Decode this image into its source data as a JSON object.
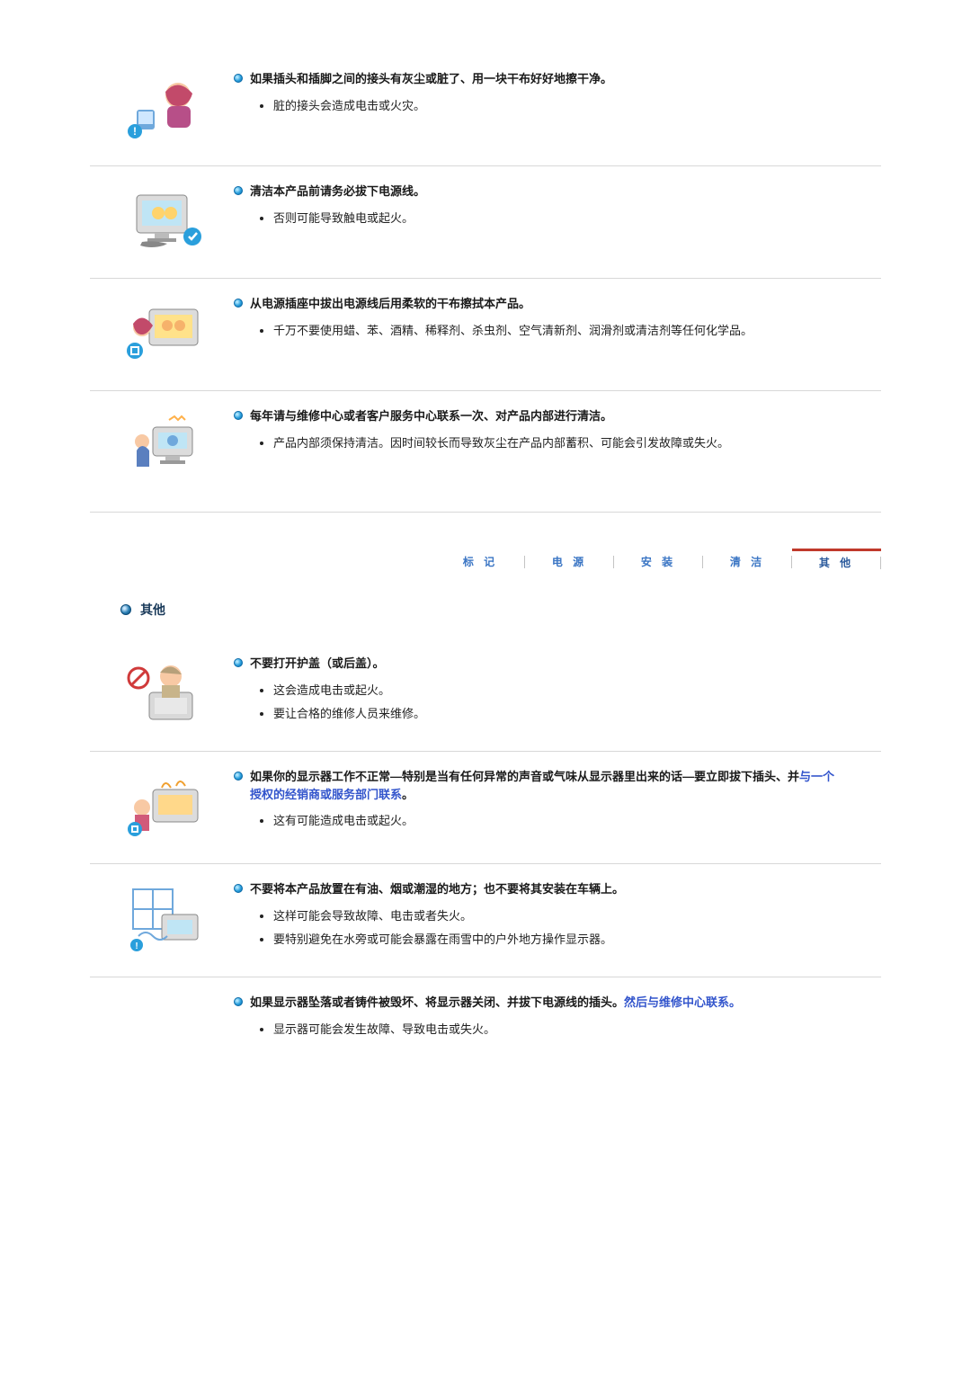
{
  "cleaning_items": [
    {
      "heading": "如果插头和插脚之间的接头有灰尘或脏了、用一块干布好好地擦干净。",
      "bullets": [
        "脏的接头会造成电击或火灾。"
      ]
    },
    {
      "heading": "清洁本产品前请务必拔下电源线。",
      "bullets": [
        "否则可能导致触电或起火。"
      ]
    },
    {
      "heading": "从电源插座中拔出电源线后用柔软的干布擦拭本产品。",
      "bullets": [
        "千万不要使用蜡、苯、酒精、稀释剂、杀虫剂、空气清新剂、润滑剂或清洁剂等任何化学品。"
      ]
    },
    {
      "heading": "每年请与维修中心或者客户服务中心联系一次、对产品内部进行清洁。",
      "bullets": [
        "产品内部须保持清洁。因时间较长而导致灰尘在产品内部蓄积、可能会引发故障或失火。"
      ]
    }
  ],
  "tabs": {
    "items": [
      "标 记",
      "电 源",
      "安 装",
      "清 洁",
      "其 他"
    ],
    "active_index": 4,
    "active_border_color": "#c0392b",
    "text_color": "#3a75c4"
  },
  "section2": {
    "title": "其他",
    "items": [
      {
        "heading_parts": [
          {
            "text": "不要打开护盖（或后盖）。",
            "link": false
          }
        ],
        "bullets": [
          "这会造成电击或起火。",
          "要让合格的维修人员来维修。"
        ]
      },
      {
        "heading_parts": [
          {
            "text": "如果你的显示器工作不正常—特别是当有任何异常的声音或气味从显示器里出来的话—要立即拔下插头、并",
            "link": false
          },
          {
            "text": "与一个授权的经销商或服务部门联系",
            "link": true
          },
          {
            "text": "。",
            "link": false
          }
        ],
        "bullets": [
          "这有可能造成电击或起火。"
        ]
      },
      {
        "heading_parts": [
          {
            "text": "不要将本产品放置在有油、烟或潮湿的地方；也不要将其安装在车辆上。",
            "link": false
          }
        ],
        "bullets": [
          "这样可能会导致故障、电击或者失火。",
          "要特别避免在水旁或可能会暴露在雨雪中的户外地方操作显示器。"
        ]
      },
      {
        "heading_parts": [
          {
            "text": "如果显示器坠落或者铸件被毁坏、将显示器关闭、并拔下电源线的插头。",
            "link": false
          },
          {
            "text": "然后与维修中心联系。",
            "link": true
          }
        ],
        "bullets": [
          "显示器可能会发生故障、导致电击或失火。"
        ]
      }
    ]
  },
  "colors": {
    "divider": "#d8d8d8",
    "bullet_dot": "#0a6aa8",
    "link": "#3355cc"
  }
}
